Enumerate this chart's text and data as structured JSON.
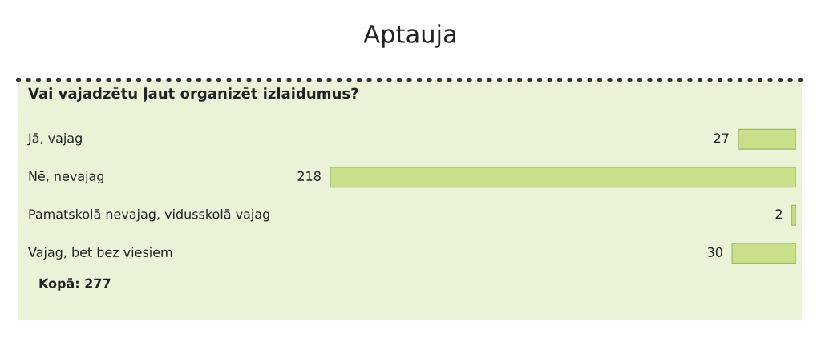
{
  "chart_data": {
    "type": "bar",
    "orientation": "horizontal",
    "title": "Aptauja",
    "subtitle": "Vai vajadzētu ļaut organizēt izlaidumus?",
    "categories": [
      "Jā, vajag",
      "Nē, nevajag",
      "Pamatskolā nevajag, vidusskolā vajag",
      "Vajag, bet bez viesiem"
    ],
    "values": [
      27,
      218,
      2,
      30
    ],
    "color": "#c9df8a",
    "data_labels": true,
    "annotations": [
      "Kopā: 277"
    ]
  }
}
